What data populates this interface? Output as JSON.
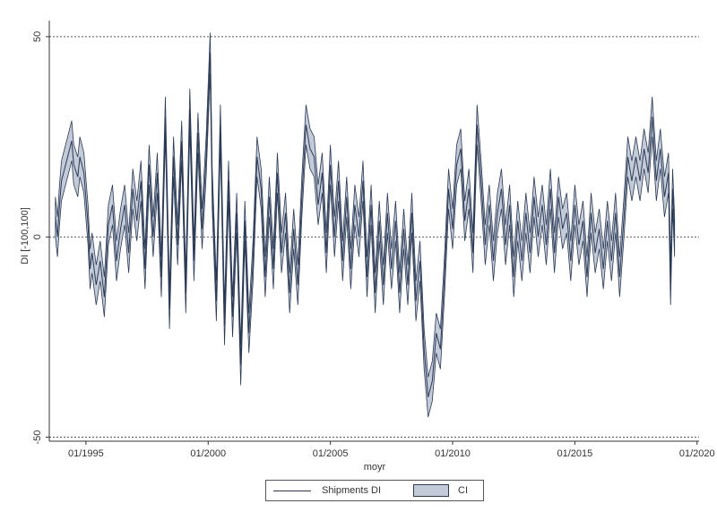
{
  "chart_data": {
    "type": "line",
    "title": "",
    "xlabel": "moyr",
    "ylabel": "DI [-100,100]",
    "xlim": [
      "1993-07",
      "2020-02"
    ],
    "ylim": [
      -51,
      54
    ],
    "x_ticks": [
      "01/1995",
      "01/2000",
      "01/2005",
      "01/2010",
      "01/2015",
      "01/2020"
    ],
    "y_ticks": [
      {
        "value": -50,
        "label": "-50"
      },
      {
        "value": 0,
        "label": "0"
      },
      {
        "value": 50,
        "label": "50"
      }
    ],
    "reference_lines": [
      -50,
      0,
      50
    ],
    "grid": false,
    "legend_position": "bottom",
    "colors": {
      "line": "#2b3a55",
      "ci_fill": "#c3cad8",
      "reference_line": "#555555"
    },
    "series": [
      {
        "name": "Shipments DI",
        "type": "line",
        "points": [
          {
            "x": "1993-10",
            "y": 5
          },
          {
            "x": "1993-11",
            "y": 0
          },
          {
            "x": "1993-12",
            "y": 8
          },
          {
            "x": "1994-01",
            "y": 14
          },
          {
            "x": "1994-02",
            "y": 16
          },
          {
            "x": "1994-04",
            "y": 20
          },
          {
            "x": "1994-06",
            "y": 24
          },
          {
            "x": "1994-07",
            "y": 18
          },
          {
            "x": "1994-09",
            "y": 15
          },
          {
            "x": "1994-10",
            "y": 20
          },
          {
            "x": "1994-12",
            "y": 16
          },
          {
            "x": "1995-02",
            "y": 3
          },
          {
            "x": "1995-03",
            "y": -8
          },
          {
            "x": "1995-04",
            "y": -4
          },
          {
            "x": "1995-06",
            "y": -12
          },
          {
            "x": "1995-08",
            "y": -6
          },
          {
            "x": "1995-10",
            "y": -15
          },
          {
            "x": "1995-12",
            "y": 3
          },
          {
            "x": "1996-02",
            "y": 8
          },
          {
            "x": "1996-04",
            "y": -6
          },
          {
            "x": "1996-06",
            "y": 2
          },
          {
            "x": "1996-08",
            "y": 8
          },
          {
            "x": "1996-10",
            "y": -4
          },
          {
            "x": "1996-12",
            "y": 12
          },
          {
            "x": "1997-02",
            "y": 4
          },
          {
            "x": "1997-04",
            "y": 14
          },
          {
            "x": "1997-06",
            "y": -8
          },
          {
            "x": "1997-08",
            "y": 18
          },
          {
            "x": "1997-10",
            "y": 0
          },
          {
            "x": "1997-12",
            "y": 16
          },
          {
            "x": "1998-02",
            "y": -10
          },
          {
            "x": "1998-04",
            "y": 30
          },
          {
            "x": "1998-06",
            "y": -18
          },
          {
            "x": "1998-08",
            "y": 20
          },
          {
            "x": "1998-10",
            "y": -2
          },
          {
            "x": "1998-12",
            "y": 24
          },
          {
            "x": "1999-02",
            "y": -14
          },
          {
            "x": "1999-04",
            "y": 32
          },
          {
            "x": "1999-06",
            "y": -6
          },
          {
            "x": "1999-08",
            "y": 26
          },
          {
            "x": "1999-10",
            "y": 2
          },
          {
            "x": "1999-12",
            "y": 20
          },
          {
            "x": "2000-02",
            "y": 46
          },
          {
            "x": "2000-03",
            "y": 12
          },
          {
            "x": "2000-05",
            "y": -16
          },
          {
            "x": "2000-07",
            "y": 28
          },
          {
            "x": "2000-09",
            "y": -22
          },
          {
            "x": "2000-11",
            "y": 14
          },
          {
            "x": "2001-01",
            "y": -20
          },
          {
            "x": "2001-03",
            "y": 6
          },
          {
            "x": "2001-05",
            "y": -32
          },
          {
            "x": "2001-07",
            "y": 4
          },
          {
            "x": "2001-09",
            "y": -24
          },
          {
            "x": "2001-11",
            "y": -6
          },
          {
            "x": "2002-01",
            "y": 20
          },
          {
            "x": "2002-03",
            "y": 12
          },
          {
            "x": "2002-05",
            "y": -10
          },
          {
            "x": "2002-07",
            "y": 10
          },
          {
            "x": "2002-09",
            "y": -8
          },
          {
            "x": "2002-11",
            "y": 16
          },
          {
            "x": "2003-01",
            "y": -4
          },
          {
            "x": "2003-03",
            "y": 6
          },
          {
            "x": "2003-05",
            "y": -14
          },
          {
            "x": "2003-07",
            "y": 2
          },
          {
            "x": "2003-09",
            "y": -12
          },
          {
            "x": "2003-11",
            "y": 10
          },
          {
            "x": "2004-01",
            "y": 28
          },
          {
            "x": "2004-03",
            "y": 22
          },
          {
            "x": "2004-05",
            "y": 20
          },
          {
            "x": "2004-07",
            "y": 8
          },
          {
            "x": "2004-09",
            "y": 16
          },
          {
            "x": "2004-11",
            "y": -4
          },
          {
            "x": "2005-01",
            "y": 18
          },
          {
            "x": "2005-03",
            "y": 0
          },
          {
            "x": "2005-05",
            "y": 14
          },
          {
            "x": "2005-07",
            "y": -6
          },
          {
            "x": "2005-09",
            "y": 10
          },
          {
            "x": "2005-11",
            "y": -8
          },
          {
            "x": "2006-01",
            "y": 8
          },
          {
            "x": "2006-03",
            "y": 0
          },
          {
            "x": "2006-05",
            "y": 14
          },
          {
            "x": "2006-07",
            "y": -10
          },
          {
            "x": "2006-09",
            "y": 8
          },
          {
            "x": "2006-11",
            "y": -14
          },
          {
            "x": "2007-01",
            "y": 4
          },
          {
            "x": "2007-03",
            "y": -12
          },
          {
            "x": "2007-05",
            "y": 6
          },
          {
            "x": "2007-07",
            "y": -8
          },
          {
            "x": "2007-09",
            "y": 4
          },
          {
            "x": "2007-11",
            "y": -14
          },
          {
            "x": "2008-01",
            "y": 2
          },
          {
            "x": "2008-03",
            "y": -12
          },
          {
            "x": "2008-05",
            "y": 6
          },
          {
            "x": "2008-07",
            "y": -16
          },
          {
            "x": "2008-09",
            "y": -6
          },
          {
            "x": "2008-11",
            "y": -28
          },
          {
            "x": "2009-01",
            "y": -40
          },
          {
            "x": "2009-03",
            "y": -36
          },
          {
            "x": "2009-05",
            "y": -24
          },
          {
            "x": "2009-07",
            "y": -28
          },
          {
            "x": "2009-09",
            "y": -10
          },
          {
            "x": "2009-11",
            "y": 12
          },
          {
            "x": "2010-01",
            "y": 2
          },
          {
            "x": "2010-03",
            "y": 18
          },
          {
            "x": "2010-05",
            "y": 22
          },
          {
            "x": "2010-07",
            "y": 4
          },
          {
            "x": "2010-09",
            "y": 12
          },
          {
            "x": "2010-11",
            "y": -4
          },
          {
            "x": "2011-01",
            "y": 28
          },
          {
            "x": "2011-03",
            "y": 14
          },
          {
            "x": "2011-05",
            "y": -2
          },
          {
            "x": "2011-07",
            "y": 8
          },
          {
            "x": "2011-09",
            "y": -6
          },
          {
            "x": "2011-11",
            "y": 6
          },
          {
            "x": "2012-01",
            "y": 12
          },
          {
            "x": "2012-03",
            "y": -2
          },
          {
            "x": "2012-05",
            "y": 8
          },
          {
            "x": "2012-07",
            "y": -10
          },
          {
            "x": "2012-09",
            "y": 4
          },
          {
            "x": "2012-11",
            "y": -6
          },
          {
            "x": "2013-01",
            "y": 6
          },
          {
            "x": "2013-03",
            "y": -4
          },
          {
            "x": "2013-05",
            "y": 10
          },
          {
            "x": "2013-07",
            "y": 0
          },
          {
            "x": "2013-09",
            "y": 8
          },
          {
            "x": "2013-11",
            "y": -2
          },
          {
            "x": "2014-01",
            "y": 12
          },
          {
            "x": "2014-03",
            "y": -4
          },
          {
            "x": "2014-05",
            "y": 10
          },
          {
            "x": "2014-07",
            "y": 2
          },
          {
            "x": "2014-09",
            "y": 6
          },
          {
            "x": "2014-11",
            "y": -6
          },
          {
            "x": "2015-01",
            "y": 8
          },
          {
            "x": "2015-03",
            "y": -2
          },
          {
            "x": "2015-05",
            "y": 4
          },
          {
            "x": "2015-07",
            "y": -10
          },
          {
            "x": "2015-09",
            "y": 6
          },
          {
            "x": "2015-11",
            "y": -4
          },
          {
            "x": "2016-01",
            "y": 2
          },
          {
            "x": "2016-03",
            "y": -8
          },
          {
            "x": "2016-05",
            "y": 4
          },
          {
            "x": "2016-07",
            "y": -6
          },
          {
            "x": "2016-09",
            "y": 6
          },
          {
            "x": "2016-11",
            "y": -10
          },
          {
            "x": "2017-01",
            "y": 4
          },
          {
            "x": "2017-03",
            "y": 20
          },
          {
            "x": "2017-05",
            "y": 14
          },
          {
            "x": "2017-07",
            "y": 20
          },
          {
            "x": "2017-09",
            "y": 14
          },
          {
            "x": "2017-11",
            "y": 22
          },
          {
            "x": "2018-01",
            "y": 16
          },
          {
            "x": "2018-03",
            "y": 30
          },
          {
            "x": "2018-05",
            "y": 14
          },
          {
            "x": "2018-07",
            "y": 22
          },
          {
            "x": "2018-09",
            "y": 10
          },
          {
            "x": "2018-11",
            "y": 16
          },
          {
            "x": "2018-12",
            "y": -12
          },
          {
            "x": "2019-01",
            "y": 12
          },
          {
            "x": "2019-02",
            "y": 0
          }
        ]
      },
      {
        "name": "CI",
        "type": "band",
        "half_width": 5
      }
    ],
    "legend": [
      {
        "label": "Shipments DI",
        "swatch": "line"
      },
      {
        "label": "CI",
        "swatch": "band"
      }
    ]
  }
}
